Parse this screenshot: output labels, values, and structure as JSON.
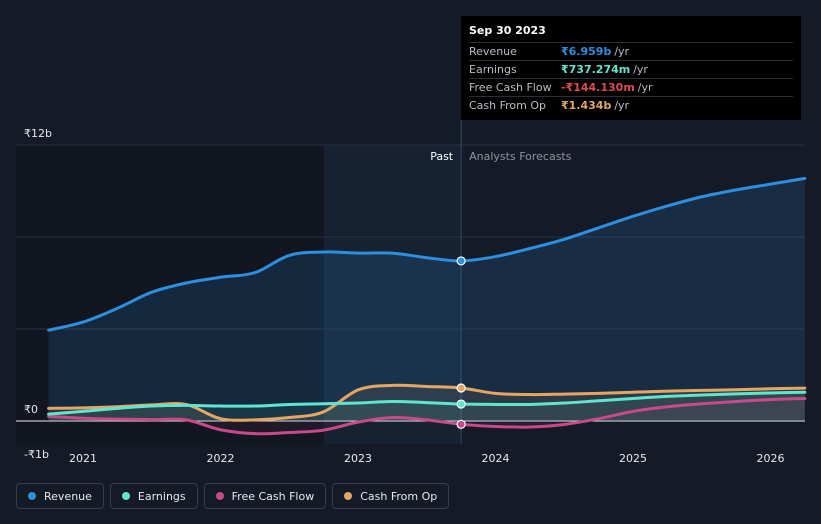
{
  "chart_data": {
    "type": "line",
    "y_axis_labels": [
      "₹12b",
      "₹0",
      "-₹1b"
    ],
    "x_tick_labels": [
      "2021",
      "2022",
      "2023",
      "2024",
      "2025",
      "2026"
    ],
    "ylim": [
      -1,
      12
    ],
    "divider_label_past": "Past",
    "divider_label_forecast": "Analysts Forecasts",
    "series": [
      {
        "name": "Revenue",
        "color": "#2d8fe0",
        "x": [
          2020.75,
          2021.0,
          2021.25,
          2021.5,
          2021.75,
          2022.0,
          2022.25,
          2022.5,
          2022.75,
          2023.0,
          2023.25,
          2023.5,
          2023.75,
          2024.0,
          2024.25,
          2024.5,
          2024.75,
          2025.0,
          2025.25,
          2025.5,
          2025.75,
          2026.0,
          2026.25
        ],
        "values": [
          3.95,
          4.3,
          4.9,
          5.6,
          6.0,
          6.25,
          6.45,
          7.2,
          7.35,
          7.3,
          7.3,
          7.1,
          6.96,
          7.15,
          7.5,
          7.9,
          8.4,
          8.9,
          9.35,
          9.75,
          10.05,
          10.3,
          10.55
        ]
      },
      {
        "name": "Earnings",
        "color": "#5ee6cf",
        "x": [
          2020.75,
          2021.0,
          2021.25,
          2021.5,
          2021.75,
          2022.0,
          2022.25,
          2022.5,
          2022.75,
          2023.0,
          2023.25,
          2023.5,
          2023.75,
          2024.0,
          2024.25,
          2024.5,
          2024.75,
          2025.0,
          2025.25,
          2025.5,
          2025.75,
          2026.0,
          2026.25
        ],
        "values": [
          0.3,
          0.42,
          0.55,
          0.65,
          0.68,
          0.65,
          0.65,
          0.72,
          0.75,
          0.78,
          0.85,
          0.8,
          0.737,
          0.72,
          0.72,
          0.78,
          0.88,
          0.98,
          1.07,
          1.13,
          1.18,
          1.22,
          1.25
        ]
      },
      {
        "name": "Free Cash Flow",
        "color": "#c84a8a",
        "x": [
          2020.75,
          2021.0,
          2021.25,
          2021.5,
          2021.75,
          2022.0,
          2022.25,
          2022.5,
          2022.75,
          2023.0,
          2023.25,
          2023.5,
          2023.75,
          2024.0,
          2024.25,
          2024.5,
          2024.75,
          2025.0,
          2025.25,
          2025.5,
          2025.75,
          2026.0,
          2026.25
        ],
        "values": [
          0.2,
          0.12,
          0.08,
          0.06,
          0.05,
          -0.38,
          -0.55,
          -0.5,
          -0.4,
          -0.05,
          0.15,
          0.05,
          -0.144,
          -0.24,
          -0.26,
          -0.15,
          0.1,
          0.42,
          0.62,
          0.75,
          0.85,
          0.93,
          0.98
        ]
      },
      {
        "name": "Cash From Op",
        "color": "#e6a662",
        "x": [
          2020.75,
          2021.0,
          2021.25,
          2021.5,
          2021.75,
          2022.0,
          2022.25,
          2022.5,
          2022.75,
          2023.0,
          2023.25,
          2023.5,
          2023.75,
          2024.0,
          2024.25,
          2024.5,
          2024.75,
          2025.0,
          2025.25,
          2025.5,
          2025.75,
          2026.0,
          2026.25
        ],
        "values": [
          0.55,
          0.57,
          0.62,
          0.7,
          0.72,
          0.1,
          0.05,
          0.15,
          0.4,
          1.35,
          1.55,
          1.5,
          1.434,
          1.2,
          1.15,
          1.17,
          1.2,
          1.25,
          1.3,
          1.33,
          1.36,
          1.4,
          1.43
        ]
      }
    ]
  },
  "tooltip": {
    "date": "Sep 30 2023",
    "rows": [
      {
        "name": "Revenue",
        "value": "₹6.959b",
        "unit": "/yr",
        "color": "#2d8fe0"
      },
      {
        "name": "Earnings",
        "value": "₹737.274m",
        "unit": "/yr",
        "color": "#5ee6cf"
      },
      {
        "name": "Free Cash Flow",
        "value": "-₹144.130m",
        "unit": "/yr",
        "color": "#e04b4b"
      },
      {
        "name": "Cash From Op",
        "value": "₹1.434b",
        "unit": "/yr",
        "color": "#e6a662"
      }
    ]
  },
  "legend": {
    "items": [
      {
        "label": "Revenue",
        "color": "#2d8fe0"
      },
      {
        "label": "Earnings",
        "color": "#5ee6cf"
      },
      {
        "label": "Free Cash Flow",
        "color": "#c84a8a"
      },
      {
        "label": "Cash From Op",
        "color": "#e6a662"
      }
    ]
  }
}
